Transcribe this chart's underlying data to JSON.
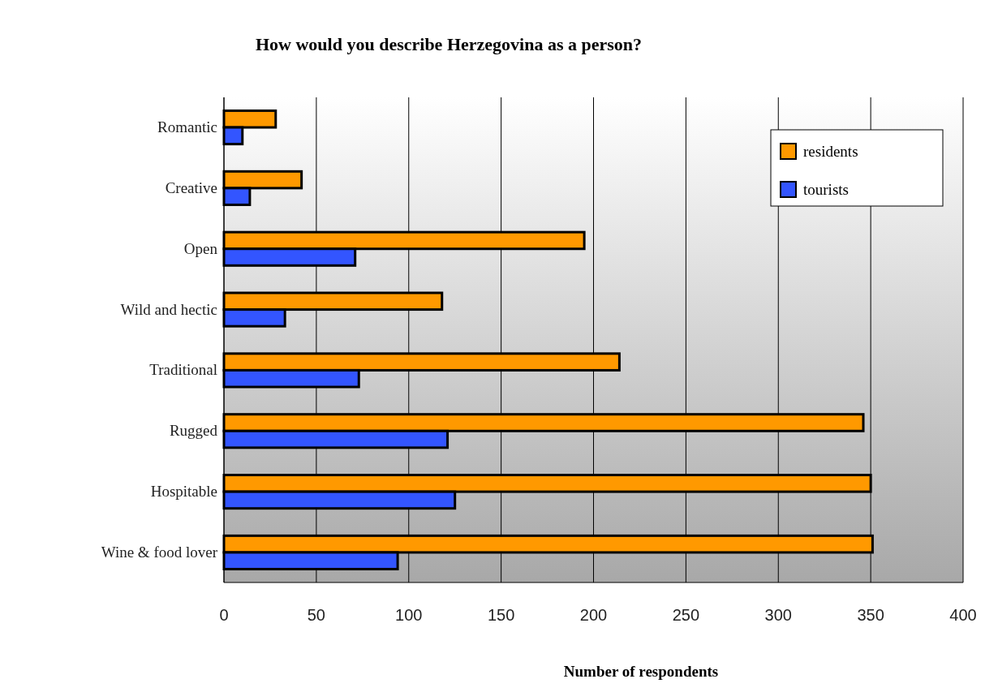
{
  "chart_data": {
    "type": "bar",
    "orientation": "horizontal",
    "title": "How would you describe Herzegovina as a person?",
    "xlabel": "Number of respondents",
    "categories": [
      "Romantic",
      "Creative",
      "Open",
      "Wild and hectic",
      "Traditional",
      "Rugged",
      "Hospitable",
      "Wine & food lover"
    ],
    "series": [
      {
        "name": "residents",
        "color": "#ff9900",
        "values": [
          28,
          42,
          195,
          118,
          214,
          346,
          350,
          351
        ]
      },
      {
        "name": "tourists",
        "color": "#3355ff",
        "values": [
          10,
          14,
          71,
          33,
          73,
          121,
          125,
          94
        ]
      }
    ],
    "xlim": [
      0,
      400
    ],
    "xticks": [
      0,
      50,
      100,
      150,
      200,
      250,
      300,
      350,
      400
    ],
    "grid": "x",
    "legend": "top right"
  }
}
